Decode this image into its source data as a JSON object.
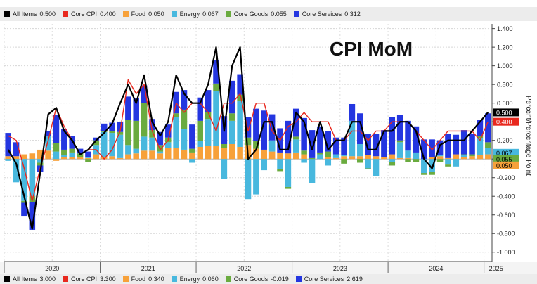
{
  "legend_top": [
    {
      "label": "All Items",
      "value": "0.500",
      "color": "#000000"
    },
    {
      "label": "Core CPI",
      "value": "0.400",
      "color": "#e8281e"
    },
    {
      "label": "Food",
      "value": "0.050",
      "color": "#f7a13a"
    },
    {
      "label": "Energy",
      "value": "0.067",
      "color": "#48b8de"
    },
    {
      "label": "Core Goods",
      "value": "0.055",
      "color": "#6aab3f"
    },
    {
      "label": "Core Services",
      "value": "0.312",
      "color": "#2436e0"
    }
  ],
  "legend_bottom": [
    {
      "label": "All Items",
      "value": "3.000",
      "color": "#000000"
    },
    {
      "label": "Core CPI",
      "value": "3.300",
      "color": "#e8281e"
    },
    {
      "label": "Food",
      "value": "0.340",
      "color": "#f7a13a"
    },
    {
      "label": "Energy",
      "value": "0.060",
      "color": "#48b8de"
    },
    {
      "label": "Core Goods",
      "value": "-0.019",
      "color": "#6aab3f"
    },
    {
      "label": "Core Services",
      "value": "2.619",
      "color": "#2436e0"
    }
  ],
  "chart_data": {
    "type": "bar",
    "title": "CPI MoM",
    "ylabel": "Percent/Percentage Point",
    "ylim": [
      -1.1,
      1.45
    ],
    "yticks": [
      "1.400",
      "1.200",
      "1.000",
      "0.800",
      "0.600",
      "0.400",
      "0.200",
      "0.000",
      "-0.200",
      "-0.400",
      "-0.600",
      "-0.800",
      "-1.000"
    ],
    "xtick_labels": [
      "2020",
      "2021",
      "2022",
      "2023",
      "2024",
      "2025"
    ],
    "grid": true,
    "stacked": true,
    "x": [
      "2020-01",
      "2020-02",
      "2020-03",
      "2020-04",
      "2020-05",
      "2020-06",
      "2020-07",
      "2020-08",
      "2020-09",
      "2020-10",
      "2020-11",
      "2020-12",
      "2021-01",
      "2021-02",
      "2021-03",
      "2021-04",
      "2021-05",
      "2021-06",
      "2021-07",
      "2021-08",
      "2021-09",
      "2021-10",
      "2021-11",
      "2021-12",
      "2022-01",
      "2022-02",
      "2022-03",
      "2022-04",
      "2022-05",
      "2022-06",
      "2022-07",
      "2022-08",
      "2022-09",
      "2022-10",
      "2022-11",
      "2022-12",
      "2023-01",
      "2023-02",
      "2023-03",
      "2023-04",
      "2023-05",
      "2023-06",
      "2023-07",
      "2023-08",
      "2023-09",
      "2023-10",
      "2023-11",
      "2023-12",
      "2024-01",
      "2024-02",
      "2024-03",
      "2024-04",
      "2024-05",
      "2024-06",
      "2024-07",
      "2024-08",
      "2024-09",
      "2024-10",
      "2024-11",
      "2024-12",
      "2025-01"
    ],
    "series": [
      {
        "name": "Food",
        "color": "#f7a13a",
        "values": [
          0.03,
          0.03,
          0.05,
          0.06,
          0.1,
          0.09,
          -0.02,
          0.02,
          0.02,
          0.02,
          0.01,
          0.05,
          0.02,
          0.03,
          0.01,
          0.05,
          0.06,
          0.09,
          0.09,
          0.06,
          0.12,
          0.12,
          0.1,
          0.07,
          0.13,
          0.14,
          0.14,
          0.12,
          0.16,
          0.13,
          0.15,
          0.11,
          0.1,
          0.08,
          0.07,
          0.06,
          0.07,
          0.05,
          0.0,
          0.0,
          0.02,
          0.01,
          0.03,
          0.03,
          0.03,
          0.04,
          0.03,
          0.02,
          0.05,
          0.01,
          0.01,
          0.0,
          0.0,
          0.02,
          0.03,
          0.01,
          0.05,
          0.02,
          0.03,
          0.04,
          0.05
        ]
      },
      {
        "name": "Energy",
        "color": "#48b8de",
        "values": [
          -0.02,
          -0.25,
          -0.45,
          -0.4,
          -0.04,
          0.16,
          0.08,
          0.02,
          0.05,
          0.0,
          0.01,
          0.1,
          0.27,
          0.25,
          0.25,
          0.1,
          0.05,
          0.15,
          0.14,
          0.02,
          0.06,
          0.33,
          0.22,
          -0.04,
          0.06,
          0.29,
          0.59,
          -0.21,
          0.25,
          0.49,
          -0.43,
          -0.38,
          -0.12,
          0.12,
          -0.11,
          -0.3,
          0.14,
          -0.04,
          -0.26,
          0.05,
          -0.07,
          0.04,
          0.01,
          0.38,
          0.13,
          -0.1,
          -0.18,
          0.0,
          -0.03,
          0.17,
          0.08,
          0.07,
          -0.15,
          -0.14,
          0.01,
          -0.06,
          -0.08,
          0.02,
          0.0,
          0.18,
          0.07
        ]
      },
      {
        "name": "Core Goods",
        "color": "#6aab3f",
        "values": [
          0.0,
          0.0,
          -0.02,
          -0.06,
          -0.03,
          0.0,
          0.09,
          0.06,
          0.04,
          0.04,
          -0.03,
          0.05,
          0.01,
          0.02,
          0.03,
          0.27,
          0.3,
          0.36,
          0.08,
          0.07,
          0.05,
          0.04,
          0.21,
          0.04,
          0.22,
          0.07,
          0.08,
          0.04,
          0.08,
          0.07,
          0.08,
          0.08,
          0.0,
          0.0,
          -0.02,
          -0.02,
          0.03,
          0.04,
          0.01,
          0.02,
          0.06,
          0.0,
          -0.05,
          0.0,
          -0.04,
          -0.01,
          0.0,
          0.0,
          -0.04,
          0.02,
          -0.03,
          -0.03,
          -0.02,
          -0.03,
          -0.03,
          -0.02,
          0.0,
          0.01,
          0.02,
          0.03,
          0.06
        ]
      },
      {
        "name": "Core Services",
        "color": "#2436e0",
        "values": [
          0.25,
          0.15,
          -0.14,
          -0.3,
          -0.07,
          0.05,
          0.3,
          0.22,
          0.14,
          0.05,
          0.06,
          0.03,
          0.08,
          0.09,
          0.11,
          0.25,
          0.24,
          0.19,
          0.12,
          0.14,
          0.14,
          0.23,
          0.21,
          0.26,
          0.25,
          0.24,
          0.25,
          0.3,
          0.35,
          0.22,
          0.22,
          0.35,
          0.42,
          0.28,
          0.26,
          0.35,
          0.3,
          0.35,
          0.3,
          0.28,
          0.22,
          0.18,
          0.19,
          0.18,
          0.33,
          0.23,
          0.24,
          0.29,
          0.4,
          0.27,
          0.32,
          0.28,
          0.21,
          0.19,
          0.16,
          0.26,
          0.21,
          0.26,
          0.22,
          0.17,
          0.31
        ]
      }
    ],
    "lines": [
      {
        "name": "All Items",
        "color": "#000000",
        "values": [
          0.1,
          -0.05,
          -0.4,
          -0.75,
          -0.15,
          0.48,
          0.55,
          0.3,
          0.2,
          0.05,
          0.1,
          0.2,
          0.28,
          0.38,
          0.6,
          0.8,
          0.6,
          0.9,
          0.4,
          0.25,
          0.4,
          0.9,
          0.7,
          0.6,
          0.6,
          0.8,
          1.2,
          0.3,
          1.0,
          1.2,
          0.0,
          0.1,
          0.4,
          0.4,
          0.1,
          0.1,
          0.5,
          0.4,
          0.1,
          0.4,
          0.1,
          0.2,
          0.2,
          0.4,
          0.4,
          0.1,
          0.1,
          0.3,
          0.3,
          0.4,
          0.4,
          0.3,
          0.0,
          -0.1,
          0.15,
          0.2,
          0.2,
          0.2,
          0.3,
          0.4,
          0.5
        ]
      },
      {
        "name": "Core CPI",
        "color": "#e8281e",
        "values": [
          0.25,
          0.2,
          -0.1,
          -0.45,
          -0.1,
          0.2,
          0.55,
          0.35,
          0.2,
          0.05,
          0.1,
          0.1,
          0.0,
          0.1,
          0.3,
          0.85,
          0.7,
          0.8,
          0.3,
          0.1,
          0.2,
          0.6,
          0.5,
          0.6,
          0.6,
          0.5,
          0.3,
          0.6,
          0.6,
          0.7,
          0.3,
          0.6,
          0.6,
          0.3,
          0.2,
          0.35,
          0.4,
          0.5,
          0.4,
          0.4,
          0.4,
          0.2,
          0.2,
          0.3,
          0.3,
          0.2,
          0.3,
          0.3,
          0.4,
          0.4,
          0.4,
          0.3,
          0.2,
          0.1,
          0.2,
          0.3,
          0.3,
          0.3,
          0.3,
          0.2,
          0.4
        ]
      }
    ],
    "end_labels": [
      {
        "text": "0.500",
        "color": "#000000",
        "value": 0.5
      },
      {
        "text": "0.400",
        "color": "#e8281e",
        "value": 0.4
      },
      {
        "text": "0.055",
        "color": "#6aab3f",
        "value": 0.055
      },
      {
        "text": "0.067",
        "color": "#48b8de",
        "value": 0.067
      },
      {
        "text": "0.050",
        "color": "#f7a13a",
        "value": 0.05
      }
    ]
  }
}
